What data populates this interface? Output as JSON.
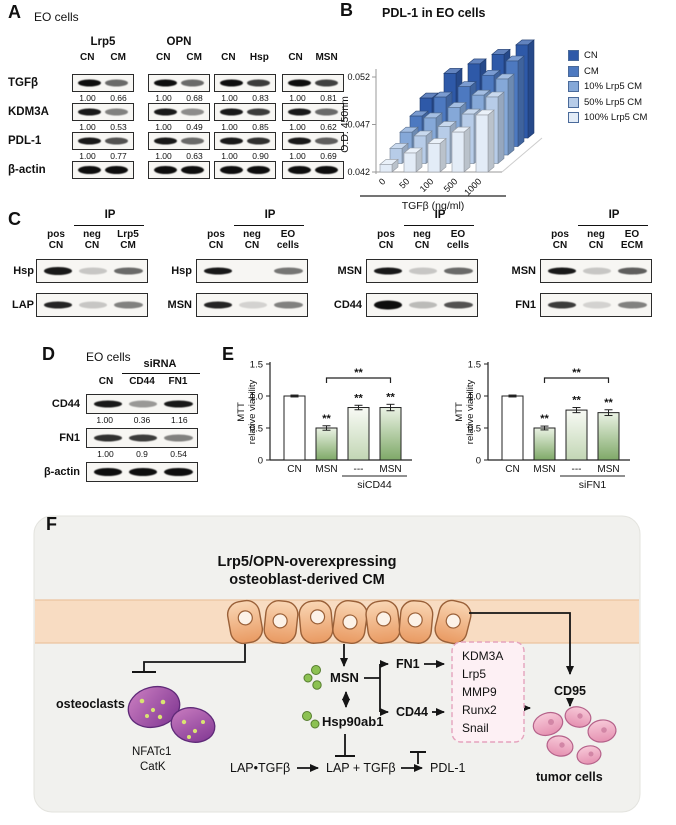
{
  "panel_a": {
    "label": "A",
    "cells": "EO cells",
    "groups": [
      {
        "title": "Lrp5",
        "cols": [
          "CN",
          "CM"
        ]
      },
      {
        "title": "OPN",
        "cols": [
          "CN",
          "CM"
        ]
      },
      {
        "title": "",
        "cols": [
          "CN",
          "Hsp"
        ]
      },
      {
        "title": "",
        "cols": [
          "CN",
          "MSN"
        ]
      }
    ],
    "row_labels": [
      "TGFβ",
      "KDM3A",
      "PDL-1",
      "β-actin"
    ],
    "values": [
      [
        [
          "1.00",
          "0.66"
        ],
        [
          "1.00",
          "0.68"
        ],
        [
          "1.00",
          "0.83"
        ],
        [
          "1.00",
          "0.81"
        ]
      ],
      [
        [
          "1.00",
          "0.53"
        ],
        [
          "1.00",
          "0.49"
        ],
        [
          "1.00",
          "0.85"
        ],
        [
          "1.00",
          "0.62"
        ]
      ],
      [
        [
          "1.00",
          "0.77"
        ],
        [
          "1.00",
          "0.63"
        ],
        [
          "1.00",
          "0.90"
        ],
        [
          "1.00",
          "0.69"
        ]
      ]
    ]
  },
  "panel_b": {
    "label": "B"
  },
  "panel_c": {
    "label": "C",
    "ip": "IP",
    "groups": [
      {
        "rows": [
          "Hsp",
          "LAP"
        ],
        "cols": [
          [
            "pos",
            "CN"
          ],
          [
            "neg",
            "CN"
          ],
          [
            "Lrp5",
            "CM"
          ]
        ]
      },
      {
        "rows": [
          "Hsp",
          "MSN"
        ],
        "cols": [
          [
            "pos",
            "CN"
          ],
          [
            "neg",
            "CN"
          ],
          [
            "EO",
            "cells"
          ]
        ]
      },
      {
        "rows": [
          "MSN",
          "CD44"
        ],
        "cols": [
          [
            "pos",
            "CN"
          ],
          [
            "neg",
            "CN"
          ],
          [
            "EO",
            "cells"
          ]
        ]
      },
      {
        "rows": [
          "MSN",
          "FN1"
        ],
        "cols": [
          [
            "pos",
            "CN"
          ],
          [
            "neg",
            "CN"
          ],
          [
            "EO",
            "ECM"
          ]
        ]
      }
    ]
  },
  "panel_d": {
    "label": "D",
    "cells": "EO cells",
    "sirna": "siRNA",
    "cols": [
      "CN",
      "CD44",
      "FN1"
    ],
    "rows": [
      "CD44",
      "FN1",
      "β-actin"
    ],
    "values": [
      [
        "1.00",
        "0.36",
        "1.16"
      ],
      [
        "1.00",
        "0.9",
        "0.54"
      ]
    ]
  },
  "panel_e": {
    "label": "E"
  },
  "panel_f": {
    "label": "F",
    "title_line1": "Lrp5/OPN-overexpressing",
    "title_line2": "osteoblast-derived CM",
    "osteoclasts_label": "osteoclasts",
    "nfatc1": "NFATc1",
    "catk": "CatK",
    "msn": "MSN",
    "hsp90ab1": "Hsp90ab1",
    "fn1": "FN1",
    "cd44": "CD44",
    "cd95": "CD95",
    "box_genes": [
      "KDM3A",
      "Lrp5",
      "MMP9",
      "Runx2",
      "Snail"
    ],
    "lap_tgfb": "LAP•TGFβ",
    "lap_plus_tgfb": "LAP + TGFβ",
    "pdl1": "PDL-1",
    "tumor_cells_label": "tumor cells",
    "colors": {
      "title_red": "#e8231c",
      "osteoclast_blue": "#3a6ea8",
      "tumor_red": "#8b1d12"
    }
  },
  "chart_data": [
    {
      "id": "panelB",
      "type": "bar",
      "style": "3d-bar",
      "title": "PDL-1 in EO cells",
      "xlabel": "TGFβ (ng/ml)",
      "ylabel": "O.D. 450nm",
      "ylim": [
        0.042,
        0.052
      ],
      "ytick_vals": [
        0.042,
        0.047,
        0.052
      ],
      "ytick_labels": [
        "0.042",
        "0.047",
        "0.052"
      ],
      "categories": [
        "0",
        "50",
        "100",
        "500",
        "1000"
      ],
      "legend_position": "right",
      "series": [
        {
          "name": "CN",
          "color": "#2e59a8",
          "values": [
            0.0462,
            0.0488,
            0.0498,
            0.0508,
            0.0518
          ]
        },
        {
          "name": "CM",
          "color": "#4d79c0",
          "values": [
            0.0452,
            0.0472,
            0.0483,
            0.0495,
            0.051
          ]
        },
        {
          "name": "10% Lrp5 CM",
          "color": "#85a8d8",
          "values": [
            0.0444,
            0.0459,
            0.047,
            0.0483,
            0.05
          ]
        },
        {
          "name": "50% Lrp5 CM",
          "color": "#b7cce8",
          "values": [
            0.0436,
            0.0449,
            0.0459,
            0.0472,
            0.049
          ]
        },
        {
          "name": "100% Lrp5 CM",
          "color": "#e3ecf7",
          "values": [
            0.0428,
            0.044,
            0.045,
            0.0462,
            0.048
          ]
        }
      ]
    },
    {
      "id": "panelE1",
      "type": "bar",
      "ylabel": "MTT relative viability",
      "categories": [
        "CN",
        "MSN",
        "---",
        "MSN"
      ],
      "values": [
        1.0,
        0.5,
        0.82,
        0.82
      ],
      "errors": [
        0.015,
        0.035,
        0.035,
        0.05
      ],
      "sig": [
        "",
        "**",
        "**",
        "**"
      ],
      "bracket": {
        "from": 1,
        "to": 3,
        "label": "**"
      },
      "group_label": "siCD44",
      "ylim": [
        0,
        1.5
      ],
      "ytick_vals": [
        0,
        0.5,
        1.0,
        1.5
      ],
      "ytick_labels": [
        "0",
        "0.5",
        "1.0",
        "1.5"
      ],
      "fills": [
        "white",
        "green",
        "lightgreen",
        "green"
      ]
    },
    {
      "id": "panelE2",
      "type": "bar",
      "ylabel": "MTT relative viability",
      "categories": [
        "CN",
        "MSN",
        "---",
        "MSN"
      ],
      "values": [
        1.0,
        0.5,
        0.78,
        0.74
      ],
      "errors": [
        0.015,
        0.03,
        0.04,
        0.045
      ],
      "sig": [
        "",
        "**",
        "**",
        "**"
      ],
      "bracket": {
        "from": 1,
        "to": 3,
        "label": "**"
      },
      "group_label": "siFN1",
      "ylim": [
        0,
        1.5
      ],
      "ytick_vals": [
        0,
        0.5,
        1.0,
        1.5
      ],
      "ytick_labels": [
        "0",
        "0.5",
        "1.0",
        "1.5"
      ],
      "fills": [
        "white",
        "green",
        "lightgreen",
        "green"
      ]
    }
  ]
}
